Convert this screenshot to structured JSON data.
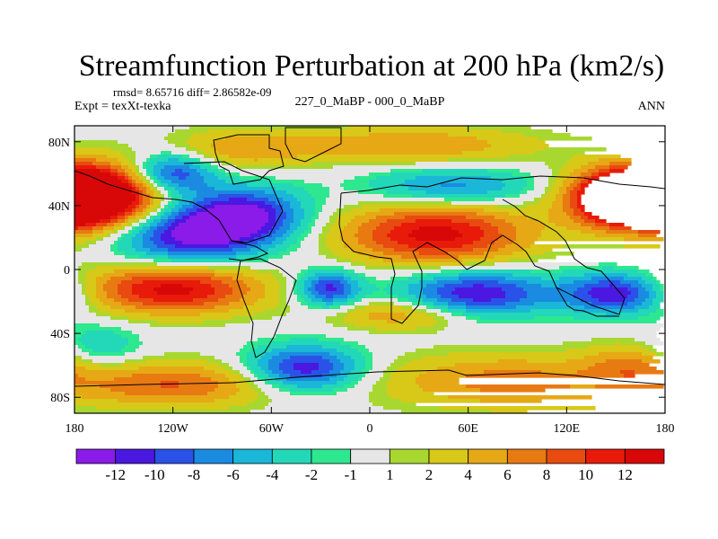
{
  "chart_data": {
    "type": "heatmap",
    "title": "Streamfunction Perturbation at 200 hPa (km2/s)",
    "stats_text": "rmsd= 8.65716 diff= 2.86582e-09",
    "left_label": "Expt = texXt-texka",
    "center_label": "227_0_MaBP - 000_0_MaBP",
    "right_label": "ANN",
    "x_ticks": [
      "180",
      "120W",
      "60W",
      "0",
      "60E",
      "120E",
      "180"
    ],
    "x_tick_values": [
      -180,
      -120,
      -60,
      0,
      60,
      120,
      180
    ],
    "y_ticks": [
      "80N",
      "40N",
      "0",
      "40S",
      "80S"
    ],
    "y_tick_values": [
      80,
      40,
      0,
      -40,
      -80
    ],
    "xlim": [
      -180,
      180
    ],
    "ylim": [
      -90,
      90
    ],
    "colorbar": {
      "labels": [
        "-12",
        "-10",
        "-8",
        "-6",
        "-4",
        "-2",
        "-1",
        "1",
        "2",
        "4",
        "6",
        "8",
        "10",
        "12"
      ],
      "colors": [
        "#8a1be8",
        "#4a18e0",
        "#2a52e8",
        "#1a8be0",
        "#1ab7d8",
        "#22d8b8",
        "#2ee890",
        "#e6e6e6",
        "#a8d830",
        "#d8c818",
        "#e6a814",
        "#e87a12",
        "#e84a10",
        "#e81a0a",
        "#d80808"
      ]
    },
    "field_centers": [
      {
        "lon": -170,
        "lat": 45,
        "value": 13,
        "sx": 30,
        "sy": 14
      },
      {
        "lon": 180,
        "lat": 45,
        "value": 13,
        "sx": 30,
        "sy": 14
      },
      {
        "lon": 150,
        "lat": 45,
        "value": 12,
        "sx": 22,
        "sy": 12
      },
      {
        "lon": -110,
        "lat": 22,
        "value": -13,
        "sx": 32,
        "sy": 13
      },
      {
        "lon": -75,
        "lat": 35,
        "value": -11,
        "sx": 25,
        "sy": 12
      },
      {
        "lon": 40,
        "lat": 22,
        "value": 13,
        "sx": 40,
        "sy": 13
      },
      {
        "lon": -120,
        "lat": 60,
        "value": -11,
        "sx": 18,
        "sy": 9
      },
      {
        "lon": -80,
        "lat": 75,
        "value": 5,
        "sx": 30,
        "sy": 9
      },
      {
        "lon": 25,
        "lat": 78,
        "value": 6,
        "sx": 55,
        "sy": 8
      },
      {
        "lon": 50,
        "lat": 52,
        "value": -7,
        "sx": 35,
        "sy": 8
      },
      {
        "lon": -120,
        "lat": -12,
        "value": 13,
        "sx": 38,
        "sy": 11
      },
      {
        "lon": -25,
        "lat": -12,
        "value": -11,
        "sx": 13,
        "sy": 8
      },
      {
        "lon": 65,
        "lat": -15,
        "value": -12,
        "sx": 32,
        "sy": 10
      },
      {
        "lon": 150,
        "lat": -15,
        "value": -12,
        "sx": 22,
        "sy": 9
      },
      {
        "lon": 20,
        "lat": -28,
        "value": 6,
        "sx": 30,
        "sy": 7
      },
      {
        "lon": -40,
        "lat": -62,
        "value": -12,
        "sx": 24,
        "sy": 10
      },
      {
        "lon": -120,
        "lat": -72,
        "value": 8,
        "sx": 45,
        "sy": 10
      },
      {
        "lon": 85,
        "lat": -70,
        "value": 7,
        "sx": 55,
        "sy": 12
      },
      {
        "lon": 160,
        "lat": -60,
        "value": 5,
        "sx": 20,
        "sy": 10
      },
      {
        "lon": -165,
        "lat": -48,
        "value": -4,
        "sx": 18,
        "sy": 10
      }
    ]
  }
}
